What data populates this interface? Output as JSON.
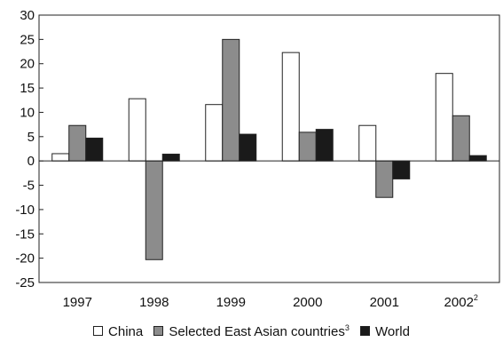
{
  "chart_data": {
    "type": "bar",
    "categories": [
      "1997",
      "1998",
      "1999",
      "2000",
      "2001",
      "2002"
    ],
    "category_superscripts": [
      "",
      "",
      "",
      "",
      "",
      "2"
    ],
    "series": [
      {
        "name": "China",
        "values": [
          1.5,
          12.8,
          11.6,
          22.3,
          7.3,
          18.0
        ],
        "color": "#ffffff"
      },
      {
        "name": "Selected East Asian countries",
        "name_superscript": "3",
        "values": [
          7.3,
          -20.3,
          25.0,
          5.9,
          -7.5,
          9.3
        ],
        "color": "#8c8c8c"
      },
      {
        "name": "World",
        "values": [
          4.7,
          1.4,
          5.5,
          6.5,
          -3.7,
          1.1
        ],
        "color": "#1a1a1a"
      }
    ],
    "y_ticks": [
      30,
      25,
      20,
      15,
      10,
      5,
      0,
      -5,
      -10,
      -15,
      -20,
      -25
    ],
    "ylim": [
      -25,
      30
    ],
    "grid": false,
    "legend_position": "bottom",
    "title": "",
    "xlabel": "",
    "ylabel": ""
  }
}
